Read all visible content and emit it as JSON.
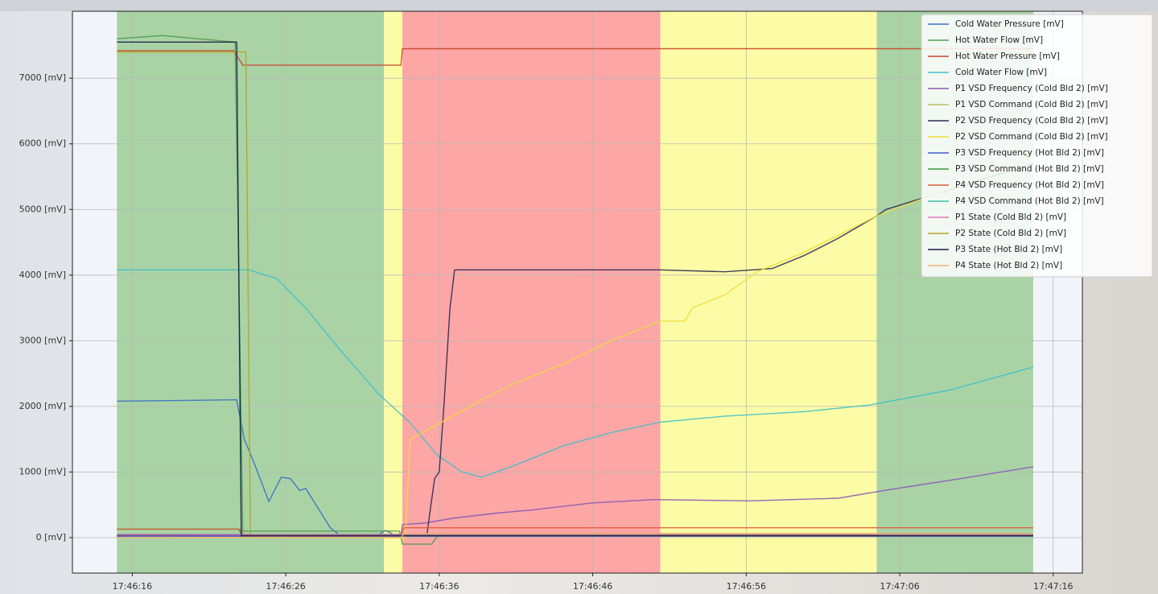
{
  "chart_data": {
    "type": "line",
    "xlim": [
      "17:46:12.1",
      "17:47:17.9"
    ],
    "xticks": [
      "17:46:16",
      "17:46:26",
      "17:46:36",
      "17:46:46",
      "17:46:56",
      "17:47:06",
      "17:47:16"
    ],
    "ylim": [
      -540,
      8020
    ],
    "yticks": [
      {
        "value": 0,
        "label": "0 [mV]"
      },
      {
        "value": 1000,
        "label": "1000 [mV]"
      },
      {
        "value": 2000,
        "label": "2000 [mV]"
      },
      {
        "value": 3000,
        "label": "3000 [mV]"
      },
      {
        "value": 4000,
        "label": "4000 [mV]"
      },
      {
        "value": 5000,
        "label": "5000 [mV]"
      },
      {
        "value": 6000,
        "label": "6000 [mV]"
      },
      {
        "value": 7000,
        "label": "7000 [mV]"
      }
    ],
    "grid": true,
    "legend": "upper right",
    "spans": [
      {
        "start": "17:46:15",
        "end": "17:46:32.4",
        "color": "#a9d3a5"
      },
      {
        "start": "17:46:32.4",
        "end": "17:46:33.6",
        "color": "#fdfca6"
      },
      {
        "start": "17:46:33.6",
        "end": "17:46:50.4",
        "color": "#fca6a6"
      },
      {
        "start": "17:46:50.4",
        "end": "17:47:04.5",
        "color": "#fdfca6"
      },
      {
        "start": "17:47:04.5",
        "end": "17:47:14.7",
        "color": "#a9d3a5"
      }
    ],
    "series": [
      {
        "name": "Cold Water Pressure [mV]",
        "color": "#3a6fc4",
        "x": [
          "17:46:15",
          "17:46:22.8",
          "17:46:23.3",
          "17:46:24",
          "17:46:24.9",
          "17:46:25.7",
          "17:46:26.3",
          "17:46:26.9",
          "17:46:27.3",
          "17:46:28.1",
          "17:46:28.9",
          "17:46:29.6",
          "17:46:32",
          "17:46:32.5",
          "17:46:33.1",
          "17:47:14.7"
        ],
        "values": [
          2080,
          2100,
          1500,
          1100,
          550,
          920,
          900,
          720,
          750,
          450,
          150,
          20,
          40,
          110,
          40,
          40
        ]
      },
      {
        "name": "Hot Water Flow [mV]",
        "color": "#4f9a4f",
        "x": [
          "17:46:15",
          "17:46:18",
          "17:46:22.7",
          "17:46:23.2",
          "17:46:33.4",
          "17:46:33.6",
          "17:46:35.5",
          "17:46:36",
          "17:47:14.7"
        ],
        "values": [
          7600,
          7650,
          7550,
          100,
          100,
          -100,
          -100,
          60,
          60
        ]
      },
      {
        "name": "Hot Water Pressure [mV]",
        "color": "#c8452e",
        "x": [
          "17:46:15",
          "17:46:22.6",
          "17:46:23.2",
          "17:46:33.5",
          "17:46:33.6",
          "17:47:14.7"
        ],
        "values": [
          7420,
          7420,
          7200,
          7200,
          7450,
          7450
        ]
      },
      {
        "name": "Cold Water Flow [mV]",
        "color": "#3fc0c8",
        "x": [
          "17:46:15",
          "17:46:23.6",
          "17:46:25.4",
          "17:46:27.3",
          "17:46:29.4",
          "17:46:32",
          "17:46:34.1",
          "17:46:35.9",
          "17:46:37.5",
          "17:46:38.8",
          "17:46:40.9",
          "17:46:44.1",
          "17:46:47.2",
          "17:46:50.4",
          "17:46:54.6",
          "17:46:59.8",
          "17:47:04",
          "17:47:09.3",
          "17:47:14.7"
        ],
        "values": [
          4080,
          4080,
          3950,
          3500,
          2900,
          2200,
          1750,
          1250,
          1000,
          920,
          1100,
          1400,
          1600,
          1760,
          1850,
          1920,
          2020,
          2250,
          2600
        ]
      },
      {
        "name": "P1 VSD Frequency (Cold Bld 2) [mV]",
        "color": "#8a5ab8",
        "x": [
          "17:46:15",
          "17:46:33.5",
          "17:46:33.6",
          "17:46:35",
          "17:46:37",
          "17:46:40",
          "17:46:42",
          "17:46:46",
          "17:46:50",
          "17:46:56.2",
          "17:47:02",
          "17:47:05",
          "17:47:10",
          "17:47:14.7"
        ],
        "values": [
          30,
          30,
          200,
          220,
          300,
          380,
          420,
          530,
          580,
          560,
          600,
          720,
          900,
          1080
        ]
      },
      {
        "name": "P1 VSD Command (Cold Bld 2) [mV]",
        "color": "#b8c060",
        "x": [
          "17:46:15",
          "17:47:14.7"
        ],
        "values": [
          50,
          50
        ]
      },
      {
        "name": "P2 VSD Frequency (Cold Bld 2) [mV]",
        "color": "#2a2a55",
        "x": [
          "17:46:15",
          "17:46:35.2",
          "17:46:35.4",
          "17:46:35.7",
          "17:46:36",
          "17:46:36.3",
          "17:46:36.7",
          "17:46:37",
          "17:46:50.4",
          "17:46:54.6",
          "17:46:57.7",
          "17:46:59.8",
          "17:47:01.9",
          "17:47:04.5",
          "17:47:05.1",
          "17:47:14.7"
        ],
        "values": [
          40,
          50,
          400,
          900,
          1000,
          2000,
          3500,
          4080,
          4080,
          4050,
          4100,
          4300,
          4550,
          4900,
          5000,
          5700
        ]
      },
      {
        "name": "P2 VSD Command (Cold Bld 2) [mV]",
        "color": "#f0dc40",
        "x": [
          "17:46:15",
          "17:46:33.8",
          "17:46:34.1",
          "17:46:35.7",
          "17:46:38.8",
          "17:46:40.9",
          "17:46:44.1",
          "17:46:47.2",
          "17:46:50.4",
          "17:46:52",
          "17:46:52.5",
          "17:46:54.6",
          "17:46:56.7",
          "17:46:59.8",
          "17:47:04.5",
          "17:47:14.7"
        ],
        "values": [
          20,
          0,
          1500,
          1700,
          2100,
          2350,
          2650,
          3000,
          3300,
          3300,
          3500,
          3700,
          4050,
          4350,
          4900,
          5800
        ]
      },
      {
        "name": "P3 VSD Frequency (Hot Bld 2) [mV]",
        "color": "#4a5bd0",
        "x": [
          "17:46:15",
          "17:47:14.7"
        ],
        "values": [
          20,
          20
        ]
      },
      {
        "name": "P3 VSD Command (Hot Bld 2) [mV]",
        "color": "#3a9a3a",
        "x": [
          "17:46:15",
          "17:46:22.9",
          "17:46:23.2",
          "17:47:14.7"
        ],
        "values": [
          130,
          130,
          30,
          30
        ]
      },
      {
        "name": "P4 VSD Frequency (Hot Bld 2) [mV]",
        "color": "#e05a3a",
        "x": [
          "17:46:15",
          "17:46:23",
          "17:46:23.3",
          "17:46:33.5",
          "17:46:33.7",
          "17:47:14.7"
        ],
        "values": [
          130,
          130,
          30,
          30,
          150,
          150
        ]
      },
      {
        "name": "P4 VSD Command (Hot Bld 2) [mV]",
        "color": "#40c0a0",
        "x": [
          "17:46:15",
          "17:47:14.7"
        ],
        "values": [
          50,
          50
        ]
      },
      {
        "name": "P1 State (Cold Bld 2) [mV]",
        "color": "#e077b8",
        "x": [
          "17:46:15",
          "17:47:14.7"
        ],
        "values": [
          50,
          50
        ]
      },
      {
        "name": "P2 State (Cold Bld 2) [mV]",
        "color": "#b0a428",
        "x": [
          "17:46:15",
          "17:46:23.4",
          "17:46:23.7",
          "17:47:14.7"
        ],
        "values": [
          7400,
          7400,
          30,
          30
        ]
      },
      {
        "name": "P3 State (Hot Bld 2) [mV]",
        "color": "#1a1a48",
        "x": [
          "17:46:15",
          "17:46:22.8",
          "17:46:23.1",
          "17:47:14.7"
        ],
        "values": [
          7550,
          7550,
          30,
          30
        ]
      },
      {
        "name": "P4 State (Hot Bld 2) [mV]",
        "color": "#f4b070",
        "x": [
          "17:46:15",
          "17:46:33.5",
          "17:46:33.7",
          "17:47:14.7"
        ],
        "values": [
          0,
          0,
          60,
          60
        ]
      }
    ]
  }
}
